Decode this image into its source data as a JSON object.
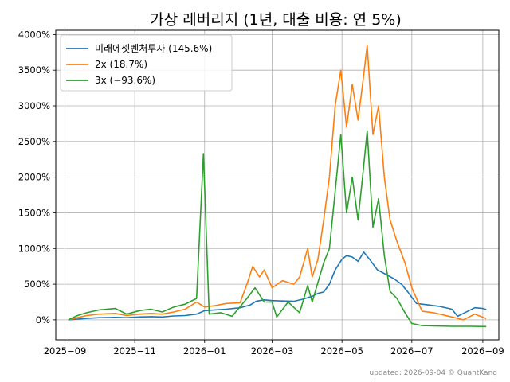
{
  "chart_data": {
    "type": "line",
    "title": "가상 레버리지 (1년, 대출 비용: 연 5%)",
    "xlabel": "",
    "ylabel": "",
    "x_ticks": [
      "2025-09",
      "2025-11",
      "2026-01",
      "2026-03",
      "2026-05",
      "2026-07",
      "2026-09"
    ],
    "xlim": [
      "2025-08-24",
      "2026-09-15"
    ],
    "y_ticks": [
      0,
      500,
      1000,
      1500,
      2000,
      2500,
      3000,
      3500,
      4000
    ],
    "y_tick_suffix": "%",
    "ylim": [
      -280,
      4060
    ],
    "grid": true,
    "legend_position": "top-left",
    "series": [
      {
        "name": "미래에셋벤처투자 (145.6%)",
        "color": "#1f77b4",
        "points": [
          [
            "2025-09-04",
            0
          ],
          [
            "2025-09-12",
            10
          ],
          [
            "2025-09-20",
            20
          ],
          [
            "2025-10-01",
            30
          ],
          [
            "2025-10-15",
            35
          ],
          [
            "2025-10-25",
            30
          ],
          [
            "2025-11-05",
            40
          ],
          [
            "2025-11-15",
            45
          ],
          [
            "2025-11-25",
            40
          ],
          [
            "2025-12-05",
            55
          ],
          [
            "2025-12-15",
            60
          ],
          [
            "2025-12-25",
            80
          ],
          [
            "2026-01-01",
            130
          ],
          [
            "2026-01-10",
            140
          ],
          [
            "2026-01-20",
            150
          ],
          [
            "2026-02-01",
            170
          ],
          [
            "2026-02-10",
            210
          ],
          [
            "2026-02-15",
            260
          ],
          [
            "2026-02-22",
            280
          ],
          [
            "2026-03-01",
            270
          ],
          [
            "2026-03-10",
            265
          ],
          [
            "2026-03-20",
            260
          ],
          [
            "2026-03-28",
            290
          ],
          [
            "2026-04-05",
            330
          ],
          [
            "2026-04-10",
            370
          ],
          [
            "2026-04-15",
            390
          ],
          [
            "2026-04-20",
            500
          ],
          [
            "2026-04-25",
            700
          ],
          [
            "2026-05-01",
            850
          ],
          [
            "2026-05-05",
            900
          ],
          [
            "2026-05-10",
            880
          ],
          [
            "2026-05-15",
            820
          ],
          [
            "2026-05-20",
            950
          ],
          [
            "2026-05-25",
            850
          ],
          [
            "2026-06-01",
            700
          ],
          [
            "2026-06-08",
            640
          ],
          [
            "2026-06-15",
            580
          ],
          [
            "2026-06-22",
            500
          ],
          [
            "2026-06-28",
            380
          ],
          [
            "2026-07-05",
            230
          ],
          [
            "2026-07-15",
            210
          ],
          [
            "2026-07-25",
            190
          ],
          [
            "2026-08-05",
            150
          ],
          [
            "2026-08-10",
            50
          ],
          [
            "2026-08-15",
            90
          ],
          [
            "2026-08-25",
            170
          ],
          [
            "2026-09-01",
            160
          ],
          [
            "2026-09-04",
            145.6
          ]
        ]
      },
      {
        "name": "2x (18.7%)",
        "color": "#ff7f0e",
        "points": [
          [
            "2025-09-04",
            0
          ],
          [
            "2025-09-12",
            30
          ],
          [
            "2025-09-20",
            60
          ],
          [
            "2025-10-01",
            80
          ],
          [
            "2025-10-15",
            90
          ],
          [
            "2025-10-25",
            60
          ],
          [
            "2025-11-05",
            80
          ],
          [
            "2025-11-15",
            90
          ],
          [
            "2025-11-25",
            80
          ],
          [
            "2025-12-05",
            110
          ],
          [
            "2025-12-15",
            150
          ],
          [
            "2025-12-25",
            250
          ],
          [
            "2026-01-01",
            180
          ],
          [
            "2026-01-10",
            200
          ],
          [
            "2026-01-20",
            230
          ],
          [
            "2026-02-01",
            240
          ],
          [
            "2026-02-07",
            500
          ],
          [
            "2026-02-12",
            750
          ],
          [
            "2026-02-18",
            600
          ],
          [
            "2026-02-22",
            700
          ],
          [
            "2026-03-01",
            450
          ],
          [
            "2026-03-10",
            550
          ],
          [
            "2026-03-20",
            500
          ],
          [
            "2026-03-25",
            600
          ],
          [
            "2026-04-01",
            1000
          ],
          [
            "2026-04-05",
            600
          ],
          [
            "2026-04-10",
            850
          ],
          [
            "2026-04-15",
            1400
          ],
          [
            "2026-04-20",
            2000
          ],
          [
            "2026-04-25",
            3000
          ],
          [
            "2026-04-30",
            3500
          ],
          [
            "2026-05-05",
            2700
          ],
          [
            "2026-05-10",
            3300
          ],
          [
            "2026-05-15",
            2800
          ],
          [
            "2026-05-19",
            3300
          ],
          [
            "2026-05-23",
            3850
          ],
          [
            "2026-05-28",
            2600
          ],
          [
            "2026-06-02",
            3000
          ],
          [
            "2026-06-07",
            2000
          ],
          [
            "2026-06-12",
            1400
          ],
          [
            "2026-06-18",
            1100
          ],
          [
            "2026-06-25",
            800
          ],
          [
            "2026-07-01",
            450
          ],
          [
            "2026-07-10",
            120
          ],
          [
            "2026-07-20",
            100
          ],
          [
            "2026-08-05",
            40
          ],
          [
            "2026-08-15",
            0
          ],
          [
            "2026-08-25",
            80
          ],
          [
            "2026-09-04",
            18.7
          ]
        ]
      },
      {
        "name": "3x (−93.6%)",
        "color": "#2ca02c",
        "points": [
          [
            "2025-09-04",
            0
          ],
          [
            "2025-09-12",
            60
          ],
          [
            "2025-09-20",
            100
          ],
          [
            "2025-10-01",
            140
          ],
          [
            "2025-10-15",
            160
          ],
          [
            "2025-10-25",
            80
          ],
          [
            "2025-11-05",
            130
          ],
          [
            "2025-11-15",
            150
          ],
          [
            "2025-11-25",
            110
          ],
          [
            "2025-12-05",
            180
          ],
          [
            "2025-12-15",
            220
          ],
          [
            "2025-12-25",
            300
          ],
          [
            "2025-12-31",
            2330
          ],
          [
            "2026-01-05",
            80
          ],
          [
            "2026-01-15",
            100
          ],
          [
            "2026-01-25",
            50
          ],
          [
            "2026-02-07",
            300
          ],
          [
            "2026-02-14",
            450
          ],
          [
            "2026-02-22",
            250
          ],
          [
            "2026-03-01",
            250
          ],
          [
            "2026-03-05",
            40
          ],
          [
            "2026-03-15",
            250
          ],
          [
            "2026-03-25",
            100
          ],
          [
            "2026-04-01",
            480
          ],
          [
            "2026-04-05",
            250
          ],
          [
            "2026-04-15",
            800
          ],
          [
            "2026-04-20",
            1000
          ],
          [
            "2026-04-25",
            1800
          ],
          [
            "2026-04-30",
            2600
          ],
          [
            "2026-05-05",
            1500
          ],
          [
            "2026-05-10",
            2000
          ],
          [
            "2026-05-15",
            1400
          ],
          [
            "2026-05-19",
            2000
          ],
          [
            "2026-05-23",
            2650
          ],
          [
            "2026-05-28",
            1300
          ],
          [
            "2026-06-02",
            1700
          ],
          [
            "2026-06-07",
            900
          ],
          [
            "2026-06-12",
            400
          ],
          [
            "2026-06-18",
            300
          ],
          [
            "2026-06-25",
            100
          ],
          [
            "2026-07-01",
            -50
          ],
          [
            "2026-07-10",
            -80
          ],
          [
            "2026-07-20",
            -85
          ],
          [
            "2026-08-05",
            -90
          ],
          [
            "2026-08-20",
            -90
          ],
          [
            "2026-09-04",
            -93.6
          ]
        ]
      }
    ]
  },
  "footer": {
    "text": "updated: 2026-09-04 © QuantKang"
  }
}
